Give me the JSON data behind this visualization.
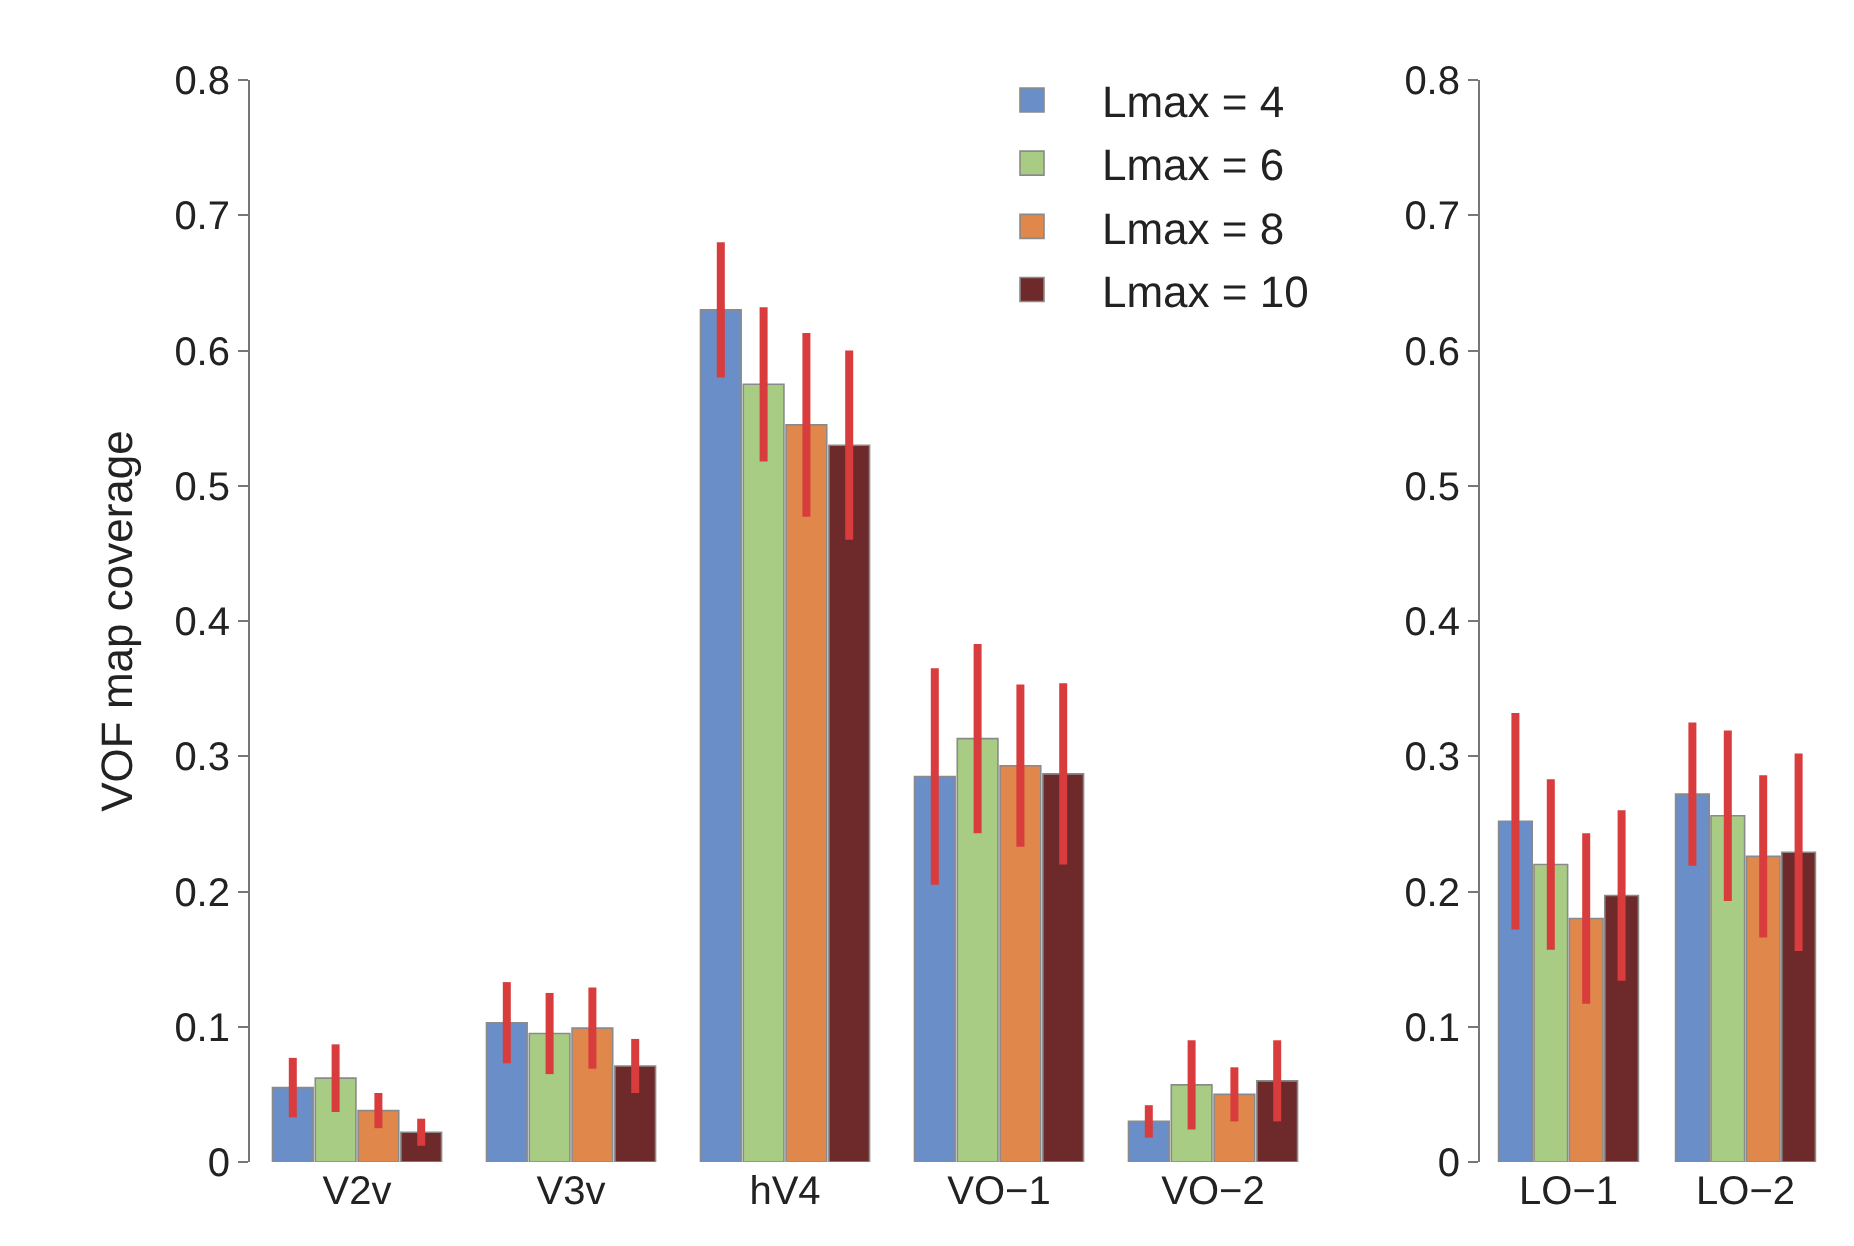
{
  "chart_data": [
    {
      "type": "bar",
      "ylabel": "VOF map coverage",
      "categories": [
        "V2v",
        "V3v",
        "hV4",
        "VO−1",
        "VO−2"
      ],
      "ylim": [
        0,
        0.8
      ],
      "yticks": [
        0,
        0.1,
        0.2,
        0.3,
        0.4,
        0.5,
        0.6,
        0.7,
        0.8
      ],
      "grid": false,
      "legend": "top right",
      "series": [
        {
          "name": "Lmax = 4",
          "color": "#6a8fc8",
          "values": [
            0.055,
            0.103,
            0.63,
            0.285,
            0.03
          ],
          "errors": [
            0.022,
            0.03,
            0.05,
            0.08,
            0.012
          ]
        },
        {
          "name": "Lmax = 6",
          "color": "#a8cc84",
          "values": [
            0.062,
            0.095,
            0.575,
            0.313,
            0.057
          ],
          "errors": [
            0.025,
            0.03,
            0.057,
            0.07,
            0.033
          ]
        },
        {
          "name": "Lmax = 8",
          "color": "#e0874c",
          "values": [
            0.038,
            0.099,
            0.545,
            0.293,
            0.05
          ],
          "errors": [
            0.013,
            0.03,
            0.068,
            0.06,
            0.02
          ]
        },
        {
          "name": "Lmax = 10",
          "color": "#6e2a2a",
          "values": [
            0.022,
            0.071,
            0.53,
            0.287,
            0.06
          ],
          "errors": [
            0.01,
            0.02,
            0.07,
            0.067,
            0.03
          ]
        }
      ]
    },
    {
      "type": "bar",
      "categories": [
        "LO−1",
        "LO−2"
      ],
      "ylim": [
        0,
        0.8
      ],
      "yticks": [
        0,
        0.1,
        0.2,
        0.3,
        0.4,
        0.5,
        0.6,
        0.7,
        0.8
      ],
      "grid": false,
      "legend": false,
      "series": [
        {
          "color": "#6a8fc8",
          "values": [
            0.252,
            0.272
          ],
          "errors": [
            0.08,
            0.053
          ]
        },
        {
          "color": "#a8cc84",
          "values": [
            0.22,
            0.256
          ],
          "errors": [
            0.063,
            0.063
          ]
        },
        {
          "color": "#e0874c",
          "values": [
            0.18,
            0.226
          ],
          "errors": [
            0.063,
            0.06
          ]
        },
        {
          "color": "#6e2a2a",
          "values": [
            0.197,
            0.229
          ],
          "errors": [
            0.063,
            0.073
          ]
        }
      ]
    }
  ]
}
